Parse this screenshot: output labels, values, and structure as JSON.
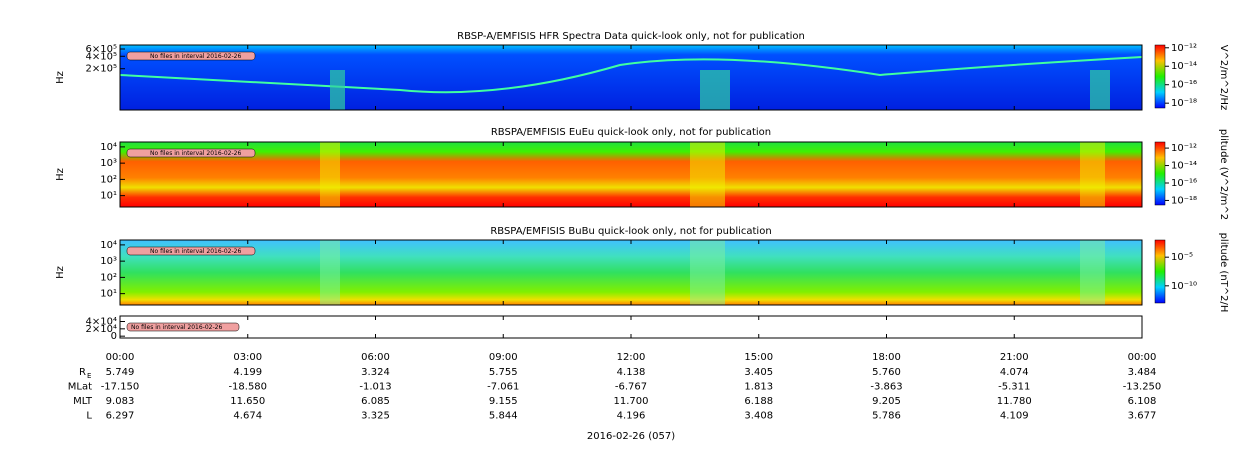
{
  "chart_data": [
    {
      "type": "spectrogram",
      "title": "RBSP-A/EMFISIS  HFR Spectra Data quick-look only, not for publication",
      "ylabel": "Hz",
      "log": true,
      "ylim": [
        20000,
        750000
      ],
      "yticks": [
        {
          "value": 600000,
          "label": "6×10⁵"
        },
        {
          "value": 400000,
          "label": "4×10⁵"
        },
        {
          "value": 200000,
          "label": "2×10⁵"
        }
      ],
      "annotation": "No files in interval 2016-02-26",
      "colorbar": {
        "label": "V^2/m^2/Hz",
        "log": true,
        "clim": [
          3e-19,
          2e-12
        ],
        "ticks": [
          {
            "value": 1e-12,
            "label": "10⁻¹²"
          },
          {
            "value": 1e-14,
            "label": "10⁻¹⁴"
          },
          {
            "value": 1e-16,
            "label": "10⁻¹⁶"
          },
          {
            "value": 1e-18,
            "label": "10⁻¹⁸"
          }
        ]
      }
    },
    {
      "type": "spectrogram",
      "title": "RBSPA/EMFISIS  EuEu quick-look only, not for publication",
      "ylabel": "Hz",
      "log": true,
      "ylim": [
        2,
        20000
      ],
      "yticks": [
        {
          "value": 10000,
          "label": "10⁴"
        },
        {
          "value": 1000,
          "label": "10³"
        },
        {
          "value": 100,
          "label": "10²"
        },
        {
          "value": 10,
          "label": "10¹"
        }
      ],
      "annotation": "No files in interval 2016-02-26",
      "colorbar": {
        "label": "plitude (V^2/m^2",
        "log": true,
        "clim": [
          3e-19,
          5e-12
        ],
        "ticks": [
          {
            "value": 1e-12,
            "label": "10⁻¹²"
          },
          {
            "value": 1e-14,
            "label": "10⁻¹⁴"
          },
          {
            "value": 1e-16,
            "label": "10⁻¹⁶"
          },
          {
            "value": 1e-18,
            "label": "10⁻¹⁸"
          }
        ]
      }
    },
    {
      "type": "spectrogram",
      "title": "RBSPA/EMFISIS  BuBu quick-look only, not for publication",
      "ylabel": "Hz",
      "log": true,
      "ylim": [
        2,
        20000
      ],
      "yticks": [
        {
          "value": 10000,
          "label": "10⁴"
        },
        {
          "value": 1000,
          "label": "10³"
        },
        {
          "value": 100,
          "label": "10²"
        },
        {
          "value": 10,
          "label": "10¹"
        }
      ],
      "annotation": "No files in interval 2016-02-26",
      "colorbar": {
        "label": "plitude (nT^2/H",
        "log": true,
        "clim": [
          1e-13,
          0.01
        ],
        "ticks": [
          {
            "value": 1e-05,
            "label": "10⁻⁵"
          },
          {
            "value": 1e-10,
            "label": "10⁻¹⁰"
          }
        ]
      }
    },
    {
      "type": "empty",
      "log": false,
      "ylim": [
        -5000,
        55000
      ],
      "yticks": [
        {
          "value": 40000,
          "label": "4×10⁴"
        },
        {
          "value": 20000,
          "label": "2×10⁴"
        },
        0
      ],
      "annotation": "No files in interval 2016-02-26"
    }
  ],
  "time_axis": {
    "ticks": [
      "00:00",
      "03:00",
      "06:00",
      "09:00",
      "12:00",
      "15:00",
      "18:00",
      "21:00",
      "00:00"
    ],
    "label": "2016-02-26 (057)"
  },
  "ephemeris": {
    "rows": [
      {
        "label": "R",
        "sub": "E",
        "values": [
          "5.749",
          "4.199",
          "3.324",
          "5.755",
          "4.138",
          "3.405",
          "5.760",
          "4.074",
          "3.484"
        ]
      },
      {
        "label": "MLat",
        "values": [
          "-17.150",
          "-18.580",
          "-1.013",
          "-7.061",
          "-6.767",
          "1.813",
          "-3.863",
          "-5.311",
          "-13.250"
        ]
      },
      {
        "label": "MLT",
        "values": [
          "9.083",
          "11.650",
          "6.085",
          "9.155",
          "11.700",
          "6.188",
          "9.205",
          "11.780",
          "6.108"
        ]
      },
      {
        "label": "L",
        "values": [
          "6.297",
          "4.674",
          "3.325",
          "5.844",
          "4.196",
          "3.408",
          "5.786",
          "4.109",
          "3.677"
        ]
      }
    ]
  }
}
